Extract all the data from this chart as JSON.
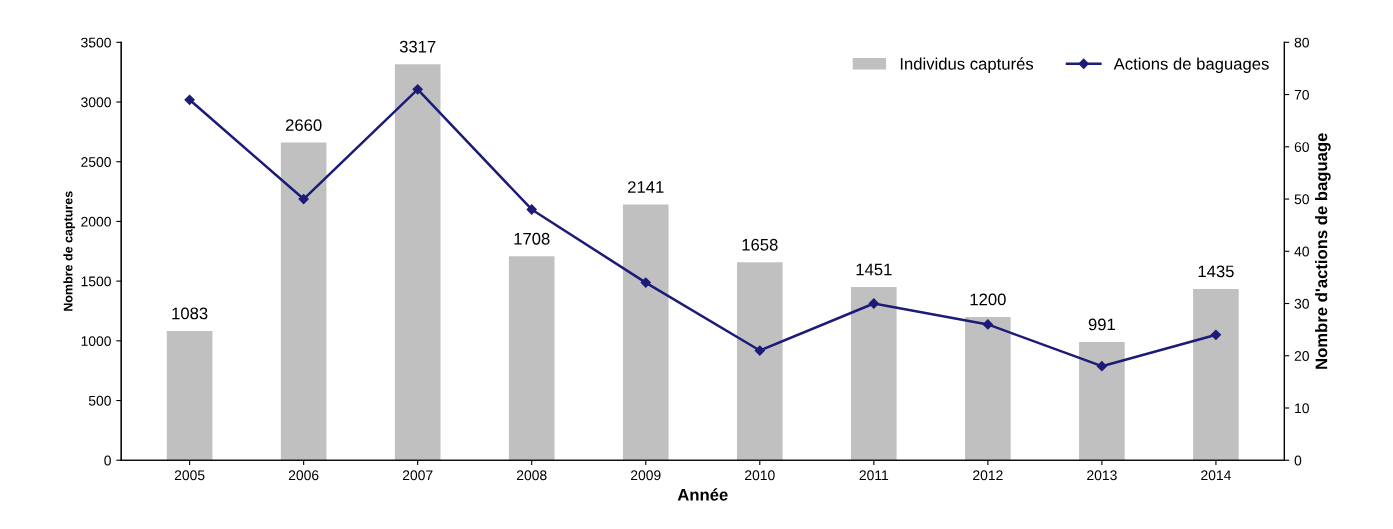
{
  "chart_data": {
    "type": "bar",
    "xlabel": "Année",
    "ylabel": "Nombre de captures",
    "y2label": "Nombre d'actions de baguage",
    "categories": [
      "2005",
      "2006",
      "2007",
      "2008",
      "2009",
      "2010",
      "2011",
      "2012",
      "2013",
      "2014"
    ],
    "series": [
      {
        "name": "Individus capturés",
        "color": "#c0c0c0",
        "values": [
          1083,
          2660,
          3317,
          1708,
          2141,
          1658,
          1451,
          1200,
          991,
          1435
        ],
        "value_labels": [
          "1083",
          "2660",
          "3317",
          "1708",
          "2141",
          "1658",
          "1451",
          "1200",
          "991",
          "1435"
        ]
      },
      {
        "name": "Actions de baguages",
        "type": "line",
        "axis": "y2",
        "color": "#1c1c78",
        "marker": "diamond",
        "values": [
          69,
          50,
          71,
          48,
          34,
          21,
          30,
          26,
          18,
          24
        ]
      }
    ],
    "ylim": [
      0,
      3500
    ],
    "yticks": [
      0,
      500,
      1000,
      1500,
      2000,
      2500,
      3000,
      3500
    ],
    "y2lim": [
      0,
      80
    ],
    "y2ticks": [
      0,
      10,
      20,
      30,
      40,
      50,
      60,
      70,
      80
    ],
    "grid": false,
    "legend": "top right"
  }
}
